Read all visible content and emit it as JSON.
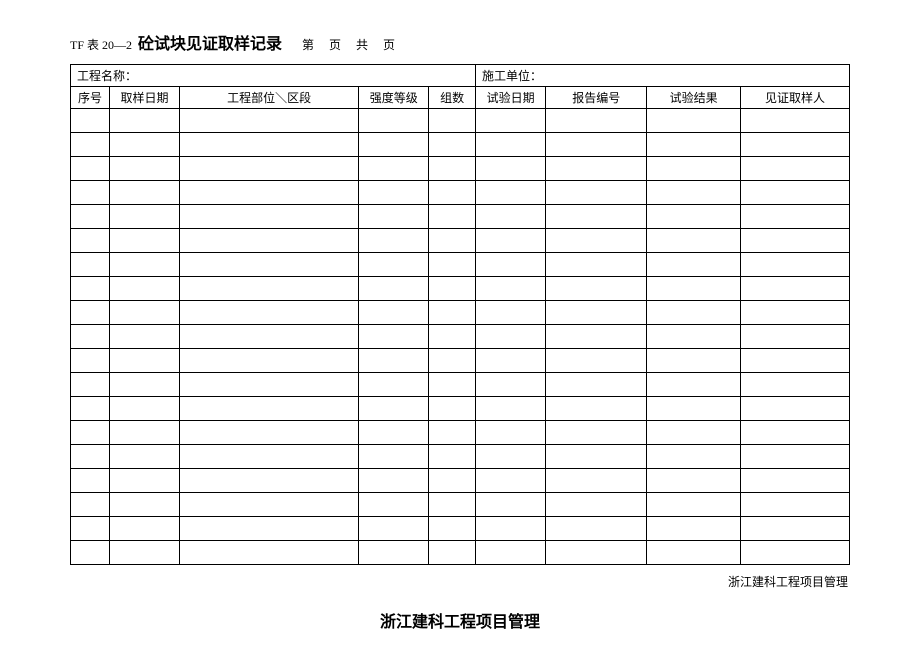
{
  "header": {
    "form_code": "TF 表 20—2",
    "form_title": "砼试块见证取样记录",
    "page_info": "第 页 共 页"
  },
  "info": {
    "project_label": "工程名称：",
    "unit_label": "施工单位："
  },
  "columns": {
    "seq": "序号",
    "sample_date": "取样日期",
    "part": "工程部位＼区段",
    "grade": "强度等级",
    "groups": "组数",
    "test_date": "试验日期",
    "report_no": "报告编号",
    "result": "试验结果",
    "witness": "见证取样人"
  },
  "row_count": 19,
  "footer": {
    "right_text": "浙江建科工程项目管理",
    "center_text": "浙江建科工程项目管理"
  },
  "style": {
    "background_color": "#ffffff",
    "border_color": "#000000",
    "title_fontsize": 16,
    "body_fontsize": 12
  }
}
